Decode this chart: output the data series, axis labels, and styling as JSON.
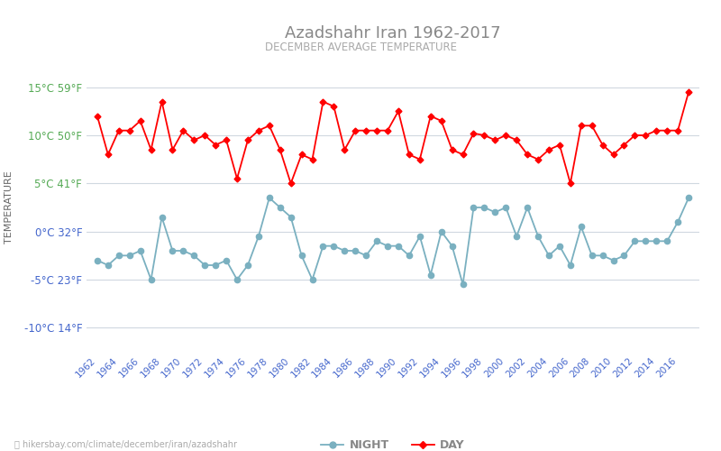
{
  "title": "Azadshahr Iran 1962-2017",
  "subtitle": "DECEMBER AVERAGE TEMPERATURE",
  "ylabel": "TEMPERATURE",
  "bg_color": "#ffffff",
  "grid_color": "#d0d8e0",
  "years": [
    1962,
    1963,
    1964,
    1965,
    1966,
    1967,
    1968,
    1969,
    1970,
    1971,
    1972,
    1973,
    1974,
    1975,
    1976,
    1977,
    1978,
    1979,
    1980,
    1981,
    1982,
    1983,
    1984,
    1985,
    1986,
    1987,
    1988,
    1989,
    1990,
    1991,
    1992,
    1993,
    1994,
    1995,
    1996,
    1997,
    1998,
    1999,
    2000,
    2001,
    2002,
    2003,
    2004,
    2005,
    2006,
    2007,
    2008,
    2009,
    2010,
    2011,
    2012,
    2013,
    2014,
    2015,
    2016,
    2017
  ],
  "day_temps": [
    12.0,
    8.0,
    10.5,
    10.5,
    11.5,
    8.5,
    13.5,
    8.5,
    10.5,
    9.5,
    10.0,
    9.0,
    9.5,
    5.5,
    9.5,
    10.5,
    11.0,
    8.5,
    5.0,
    8.0,
    7.5,
    13.5,
    13.0,
    8.5,
    10.5,
    10.5,
    10.5,
    10.5,
    12.5,
    8.0,
    7.5,
    12.0,
    11.5,
    8.5,
    8.0,
    10.2,
    10.0,
    9.5,
    10.0,
    9.5,
    8.0,
    7.5,
    8.5,
    9.0,
    5.0,
    11.0,
    11.0,
    9.0,
    8.0,
    9.0,
    10.0,
    10.0,
    10.5,
    10.5,
    10.5,
    14.5
  ],
  "night_temps": [
    -3.0,
    -3.5,
    -2.5,
    -2.5,
    -2.0,
    -5.0,
    1.5,
    -2.0,
    -2.0,
    -2.5,
    -3.5,
    -3.5,
    -3.0,
    -5.0,
    -3.5,
    -0.5,
    3.5,
    2.5,
    1.5,
    -2.5,
    -5.0,
    -1.5,
    -1.5,
    -2.0,
    -2.0,
    -2.5,
    -1.0,
    -1.5,
    -1.5,
    -2.5,
    -0.5,
    -4.5,
    0.0,
    -1.5,
    -5.5,
    2.5,
    2.5,
    2.0,
    2.5,
    -0.5,
    2.5,
    -0.5,
    -2.5,
    -1.5,
    -3.5,
    0.5,
    -2.5,
    -2.5,
    -3.0,
    -2.5,
    -1.0,
    -1.0,
    -1.0,
    -1.0,
    1.0,
    3.5
  ],
  "day_color": "#ff0000",
  "night_color": "#7ab0c0",
  "day_marker": "D",
  "night_marker": "o",
  "day_marker_size": 3.5,
  "night_marker_size": 4.5,
  "line_width": 1.3,
  "yticks_c": [
    -10,
    -5,
    0,
    5,
    10,
    15
  ],
  "yticks_f": [
    14,
    23,
    32,
    41,
    50,
    59
  ],
  "ylim": [
    -12.5,
    17.5
  ],
  "legend_night": "NIGHT",
  "legend_day": "DAY",
  "tick_label_color_green": "#55aa55",
  "tick_label_color_blue": "#4466cc",
  "title_color": "#888888",
  "subtitle_color": "#aaaaaa",
  "ylabel_color": "#666666",
  "footer_text": "hikersbay.com/climate/december/iran/azadshahr"
}
